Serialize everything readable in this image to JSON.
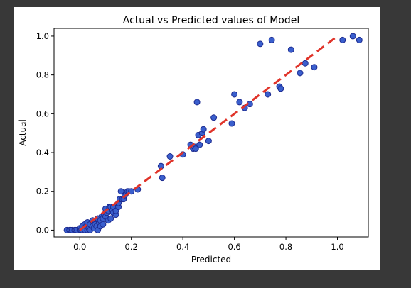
{
  "chart_data": {
    "type": "scatter",
    "title": "Actual vs Predicted values of Model",
    "xlabel": "Predicted",
    "ylabel": "Actual",
    "xlim": [
      -0.1,
      1.12
    ],
    "ylim": [
      -0.035,
      1.04
    ],
    "xticks": [
      "0.0",
      "0.2",
      "0.4",
      "0.6",
      "0.8",
      "1.0"
    ],
    "yticks": [
      "0.0",
      "0.2",
      "0.4",
      "0.6",
      "0.8",
      "1.0"
    ],
    "grid": false,
    "legend": "none",
    "colors": {
      "point_fill": "#3a5fcd",
      "point_edge": "#1c2a8f",
      "line": "#e0342a",
      "page_bg": "#383838",
      "figure_bg": "#ffffff"
    },
    "reference_line": {
      "style": "dashed",
      "x": [
        0.0,
        1.0
      ],
      "y": [
        0.0,
        1.0
      ]
    },
    "series": [
      {
        "points": [
          [
            -0.05,
            0.0
          ],
          [
            -0.04,
            0.0
          ],
          [
            -0.035,
            0.0
          ],
          [
            -0.03,
            0.0
          ],
          [
            -0.02,
            0.0
          ],
          [
            -0.015,
            0.0
          ],
          [
            -0.01,
            0.0
          ],
          [
            0.0,
            0.0
          ],
          [
            0.0,
            0.01
          ],
          [
            0.005,
            0.0
          ],
          [
            0.01,
            0.0
          ],
          [
            0.01,
            0.02
          ],
          [
            0.02,
            0.0
          ],
          [
            0.02,
            0.03
          ],
          [
            0.025,
            0.02
          ],
          [
            0.03,
            0.0
          ],
          [
            0.03,
            0.04
          ],
          [
            0.035,
            0.01
          ],
          [
            0.04,
            0.0
          ],
          [
            0.04,
            0.03
          ],
          [
            0.05,
            0.02
          ],
          [
            0.05,
            0.05
          ],
          [
            0.055,
            0.01
          ],
          [
            0.06,
            0.04
          ],
          [
            0.06,
            0.03
          ],
          [
            0.065,
            0.02
          ],
          [
            0.07,
            0.0
          ],
          [
            0.07,
            0.06
          ],
          [
            0.075,
            0.04
          ],
          [
            0.08,
            0.05
          ],
          [
            0.08,
            0.02
          ],
          [
            0.085,
            0.07
          ],
          [
            0.09,
            0.06
          ],
          [
            0.09,
            0.03
          ],
          [
            0.095,
            0.08
          ],
          [
            0.1,
            0.07
          ],
          [
            0.1,
            0.11
          ],
          [
            0.105,
            0.09
          ],
          [
            0.11,
            0.1
          ],
          [
            0.11,
            0.05
          ],
          [
            0.115,
            0.12
          ],
          [
            0.12,
            0.12
          ],
          [
            0.12,
            0.06
          ],
          [
            0.125,
            0.1
          ],
          [
            0.13,
            0.09
          ],
          [
            0.13,
            0.12
          ],
          [
            0.14,
            0.08
          ],
          [
            0.14,
            0.1
          ],
          [
            0.15,
            0.12
          ],
          [
            0.15,
            0.14
          ],
          [
            0.155,
            0.16
          ],
          [
            0.16,
            0.2
          ],
          [
            0.165,
            0.16
          ],
          [
            0.17,
            0.16
          ],
          [
            0.175,
            0.18
          ],
          [
            0.18,
            0.19
          ],
          [
            0.185,
            0.2
          ],
          [
            0.19,
            0.2
          ],
          [
            0.2,
            0.2
          ],
          [
            0.225,
            0.21
          ],
          [
            0.315,
            0.33
          ],
          [
            0.32,
            0.27
          ],
          [
            0.35,
            0.38
          ],
          [
            0.4,
            0.39
          ],
          [
            0.43,
            0.44
          ],
          [
            0.44,
            0.42
          ],
          [
            0.445,
            0.43
          ],
          [
            0.45,
            0.42
          ],
          [
            0.455,
            0.66
          ],
          [
            0.46,
            0.49
          ],
          [
            0.465,
            0.44
          ],
          [
            0.475,
            0.5
          ],
          [
            0.48,
            0.52
          ],
          [
            0.5,
            0.46
          ],
          [
            0.52,
            0.58
          ],
          [
            0.59,
            0.55
          ],
          [
            0.6,
            0.7
          ],
          [
            0.62,
            0.66
          ],
          [
            0.64,
            0.63
          ],
          [
            0.66,
            0.65
          ],
          [
            0.7,
            0.96
          ],
          [
            0.73,
            0.7
          ],
          [
            0.745,
            0.98
          ],
          [
            0.775,
            0.74
          ],
          [
            0.78,
            0.73
          ],
          [
            0.82,
            0.93
          ],
          [
            0.855,
            0.81
          ],
          [
            0.875,
            0.86
          ],
          [
            0.91,
            0.84
          ],
          [
            1.02,
            0.98
          ],
          [
            1.06,
            1.0
          ],
          [
            1.085,
            0.98
          ]
        ]
      }
    ]
  }
}
